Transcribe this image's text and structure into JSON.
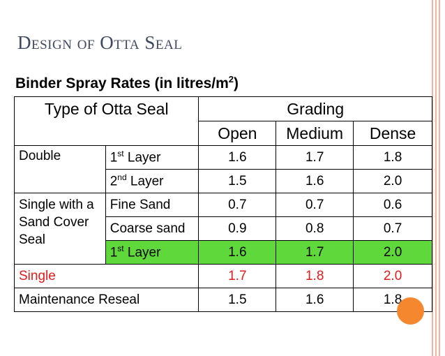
{
  "colors": {
    "accent": "#f5872f",
    "title": "#3d4860",
    "highlight_row": "#5fd83c",
    "red_text": "#e31a1a"
  },
  "slide": {
    "title": "Design of Otta Seal",
    "subtitle": "Binder  Spray Rates  (in litres/m",
    "subtitle_sup": "2",
    "subtitle_end": ")"
  },
  "table": {
    "header_type": "Type of Otta Seal",
    "header_grading": "Grading",
    "grading_cols": [
      "Open",
      "Medium",
      "Dense"
    ],
    "rows": [
      {
        "group": "Double",
        "layer_base": "1",
        "layer_sup": "st",
        "layer_end": " Layer",
        "values": [
          "1.6",
          "1.7",
          "1.8"
        ]
      },
      {
        "layer_base": "2",
        "layer_sup": "nd",
        "layer_end": " Layer",
        "values": [
          "1.5",
          "1.6",
          "2.0"
        ]
      },
      {
        "group": "Single with a Sand Cover Seal",
        "layer": "Fine Sand",
        "values": [
          "0.7",
          "0.7",
          "0.6"
        ]
      },
      {
        "layer": "Coarse sand",
        "values": [
          "0.9",
          "0.8",
          "0.7"
        ]
      },
      {
        "layer_base": "1",
        "layer_sup": "st",
        "layer_end": " Layer",
        "values": [
          "1.6",
          "1.7",
          "2.0"
        ]
      },
      {
        "label": "Single",
        "values": [
          "1.7",
          "1.8",
          "2.0"
        ]
      },
      {
        "label": "Maintenance Reseal",
        "values": [
          "1.5",
          "1.6",
          "1.8"
        ]
      }
    ]
  }
}
